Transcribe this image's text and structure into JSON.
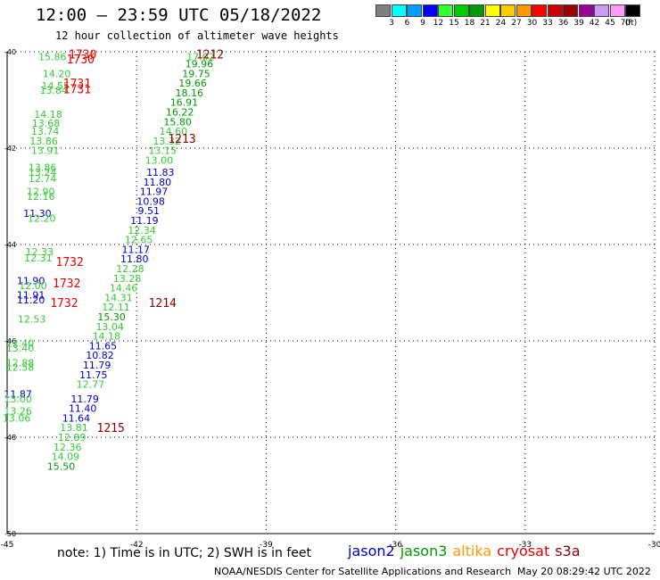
{
  "header": {
    "title": "12:00 – 23:59 UTC 05/18/2022",
    "subtitle": "12 hour collection of altimeter wave heights"
  },
  "color_scale": {
    "unit": "(ft)",
    "bins": [
      {
        "label": "3",
        "color": "#7f7f7f"
      },
      {
        "label": "6",
        "color": "#00ffff"
      },
      {
        "label": "9",
        "color": "#00a0ff"
      },
      {
        "label": "12",
        "color": "#0000ff"
      },
      {
        "label": "15",
        "color": "#33ff33"
      },
      {
        "label": "18",
        "color": "#00cc00"
      },
      {
        "label": "21",
        "color": "#009900"
      },
      {
        "label": "24",
        "color": "#ffff00"
      },
      {
        "label": "27",
        "color": "#ffcc00"
      },
      {
        "label": "30",
        "color": "#ff9900"
      },
      {
        "label": "33",
        "color": "#ff0000"
      },
      {
        "label": "36",
        "color": "#cc0000"
      },
      {
        "label": "39",
        "color": "#990000"
      },
      {
        "label": "42",
        "color": "#990099"
      },
      {
        "label": "45",
        "color": "#cc99ff"
      },
      {
        "label": "70",
        "color": "#ff99ff"
      },
      {
        "label": "",
        "color": "#000000"
      }
    ]
  },
  "map": {
    "lon_range": [
      -45,
      -30
    ],
    "lat_range": [
      -50,
      -40
    ],
    "lon_ticks": [
      -45,
      -42,
      -39,
      -36,
      -33,
      -30
    ],
    "lat_ticks": [
      -40,
      -42,
      -44,
      -46,
      -48,
      -50
    ],
    "lon_labels": [
      "-45",
      "-42",
      "-39",
      "-36",
      "-33",
      "-30"
    ],
    "lat_labels": [
      "-40",
      "-42",
      "-44",
      "-46",
      "-48",
      "-50"
    ],
    "observations": [
      {
        "lon": -43.95,
        "lat": -40.1,
        "value": "15.86",
        "color": "#33cc33"
      },
      {
        "lon": -43.85,
        "lat": -40.45,
        "value": "14.20",
        "color": "#33cc33"
      },
      {
        "lon": -43.88,
        "lat": -40.7,
        "value": "14.55",
        "color": "#33cc33"
      },
      {
        "lon": -43.92,
        "lat": -40.8,
        "value": "13.84",
        "color": "#33cc33"
      },
      {
        "lon": -44.05,
        "lat": -41.3,
        "value": "14.18",
        "color": "#33cc33"
      },
      {
        "lon": -44.1,
        "lat": -41.48,
        "value": "13.68",
        "color": "#33cc33"
      },
      {
        "lon": -44.12,
        "lat": -41.65,
        "value": "13.74",
        "color": "#33cc33"
      },
      {
        "lon": -44.15,
        "lat": -41.85,
        "value": "13.86",
        "color": "#33cc33"
      },
      {
        "lon": -44.12,
        "lat": -42.05,
        "value": "13.91",
        "color": "#33cc33"
      },
      {
        "lon": -44.18,
        "lat": -42.4,
        "value": "13.86",
        "color": "#33cc33"
      },
      {
        "lon": -44.18,
        "lat": -42.5,
        "value": "13.24",
        "color": "#33cc33"
      },
      {
        "lon": -44.18,
        "lat": -42.63,
        "value": "12.74",
        "color": "#33cc33"
      },
      {
        "lon": -44.22,
        "lat": -42.9,
        "value": "12.90",
        "color": "#33cc33"
      },
      {
        "lon": -44.22,
        "lat": -43.0,
        "value": "12.16",
        "color": "#33cc33"
      },
      {
        "lon": -44.3,
        "lat": -43.35,
        "value": "11.30",
        "color": "#0000cc"
      },
      {
        "lon": -44.2,
        "lat": -43.45,
        "value": "12.20",
        "color": "#33cc33"
      },
      {
        "lon": -44.25,
        "lat": -44.15,
        "value": "12.33",
        "color": "#33cc33"
      },
      {
        "lon": -44.28,
        "lat": -44.28,
        "value": "12.31",
        "color": "#33cc33"
      },
      {
        "lon": -44.45,
        "lat": -44.75,
        "value": "11.90",
        "color": "#0000cc"
      },
      {
        "lon": -44.4,
        "lat": -44.85,
        "value": "12.00",
        "color": "#33cc33"
      },
      {
        "lon": -44.45,
        "lat": -45.05,
        "value": "11.91",
        "color": "#0000cc"
      },
      {
        "lon": -44.45,
        "lat": -45.15,
        "value": "11.20",
        "color": "#0000cc"
      },
      {
        "lon": -44.43,
        "lat": -45.55,
        "value": "12.53",
        "color": "#33cc33"
      },
      {
        "lon": -44.7,
        "lat": -46.05,
        "value": "12.40",
        "color": "#33cc33"
      },
      {
        "lon": -44.7,
        "lat": -46.15,
        "value": "13.40",
        "color": "#33cc33"
      },
      {
        "lon": -44.7,
        "lat": -46.45,
        "value": "12.88",
        "color": "#33cc33"
      },
      {
        "lon": -44.7,
        "lat": -46.55,
        "value": "12.58",
        "color": "#33cc33"
      },
      {
        "lon": -44.75,
        "lat": -47.1,
        "value": "11.87",
        "color": "#0000cc"
      },
      {
        "lon": -44.75,
        "lat": -47.2,
        "value": "13.00",
        "color": "#33cc33"
      },
      {
        "lon": -44.75,
        "lat": -47.45,
        "value": "13.26",
        "color": "#33cc33"
      },
      {
        "lon": -44.78,
        "lat": -47.6,
        "value": "13.06",
        "color": "#33cc33"
      },
      {
        "lon": -40.52,
        "lat": -40.1,
        "value": "17.02",
        "color": "#33cc33"
      },
      {
        "lon": -40.55,
        "lat": -40.25,
        "value": "19.96",
        "color": "#009900"
      },
      {
        "lon": -40.62,
        "lat": -40.45,
        "value": "19.75",
        "color": "#009900"
      },
      {
        "lon": -40.7,
        "lat": -40.65,
        "value": "19.66",
        "color": "#009900"
      },
      {
        "lon": -40.78,
        "lat": -40.85,
        "value": "18.16",
        "color": "#009900"
      },
      {
        "lon": -40.9,
        "lat": -41.05,
        "value": "16.91",
        "color": "#009900"
      },
      {
        "lon": -41.0,
        "lat": -41.25,
        "value": "16.22",
        "color": "#009900"
      },
      {
        "lon": -41.05,
        "lat": -41.45,
        "value": "15.80",
        "color": "#009900"
      },
      {
        "lon": -41.15,
        "lat": -41.65,
        "value": "14.60",
        "color": "#33cc33"
      },
      {
        "lon": -41.3,
        "lat": -41.85,
        "value": "13.32",
        "color": "#33cc33"
      },
      {
        "lon": -41.4,
        "lat": -42.05,
        "value": "13.15",
        "color": "#33cc33"
      },
      {
        "lon": -41.48,
        "lat": -42.25,
        "value": "13.00",
        "color": "#33cc33"
      },
      {
        "lon": -41.45,
        "lat": -42.5,
        "value": "11.83",
        "color": "#0000cc"
      },
      {
        "lon": -41.52,
        "lat": -42.7,
        "value": "11.80",
        "color": "#0000cc"
      },
      {
        "lon": -41.6,
        "lat": -42.9,
        "value": "11.97",
        "color": "#0000cc"
      },
      {
        "lon": -41.67,
        "lat": -43.1,
        "value": "10.98",
        "color": "#0000cc"
      },
      {
        "lon": -41.72,
        "lat": -43.3,
        "value": "9.51",
        "color": "#0000cc"
      },
      {
        "lon": -41.82,
        "lat": -43.5,
        "value": "11.19",
        "color": "#0000cc"
      },
      {
        "lon": -41.88,
        "lat": -43.7,
        "value": "12.34",
        "color": "#33cc33"
      },
      {
        "lon": -41.95,
        "lat": -43.9,
        "value": "12.65",
        "color": "#33cc33"
      },
      {
        "lon": -42.02,
        "lat": -44.1,
        "value": "11.17",
        "color": "#0000cc"
      },
      {
        "lon": -42.05,
        "lat": -44.3,
        "value": "11.80",
        "color": "#0000cc"
      },
      {
        "lon": -42.15,
        "lat": -44.5,
        "value": "12.28",
        "color": "#33cc33"
      },
      {
        "lon": -42.22,
        "lat": -44.7,
        "value": "13.28",
        "color": "#33cc33"
      },
      {
        "lon": -42.3,
        "lat": -44.9,
        "value": "14.46",
        "color": "#33cc33"
      },
      {
        "lon": -42.42,
        "lat": -45.1,
        "value": "14.31",
        "color": "#33cc33"
      },
      {
        "lon": -42.48,
        "lat": -45.3,
        "value": "12.11",
        "color": "#33cc33"
      },
      {
        "lon": -42.58,
        "lat": -45.5,
        "value": "15.30",
        "color": "#009900"
      },
      {
        "lon": -42.62,
        "lat": -45.7,
        "value": "13.04",
        "color": "#33cc33"
      },
      {
        "lon": -42.7,
        "lat": -45.9,
        "value": "14.18",
        "color": "#33cc33"
      },
      {
        "lon": -42.78,
        "lat": -46.1,
        "value": "11.65",
        "color": "#0000cc"
      },
      {
        "lon": -42.85,
        "lat": -46.3,
        "value": "10.82",
        "color": "#0000cc"
      },
      {
        "lon": -42.92,
        "lat": -46.5,
        "value": "11.79",
        "color": "#0000cc"
      },
      {
        "lon": -43.0,
        "lat": -46.7,
        "value": "11.75",
        "color": "#0000cc"
      },
      {
        "lon": -43.07,
        "lat": -46.9,
        "value": "12.77",
        "color": "#33cc33"
      },
      {
        "lon": -43.2,
        "lat": -47.2,
        "value": "11.79",
        "color": "#0000cc"
      },
      {
        "lon": -43.25,
        "lat": -47.4,
        "value": "11.40",
        "color": "#0000cc"
      },
      {
        "lon": -43.4,
        "lat": -47.6,
        "value": "11.64",
        "color": "#0000cc"
      },
      {
        "lon": -43.45,
        "lat": -47.8,
        "value": "13.81",
        "color": "#33cc33"
      },
      {
        "lon": -43.5,
        "lat": -48.0,
        "value": "12.89",
        "color": "#33cc33"
      },
      {
        "lon": -43.6,
        "lat": -48.2,
        "value": "12.36",
        "color": "#33cc33"
      },
      {
        "lon": -43.65,
        "lat": -48.4,
        "value": "14.09",
        "color": "#33cc33"
      },
      {
        "lon": -43.75,
        "lat": -48.6,
        "value": "15.50",
        "color": "#009900"
      }
    ],
    "pass_times": [
      {
        "lon": -43.25,
        "lat": -40.05,
        "value": "1730",
        "color": "#ee0000"
      },
      {
        "lon": -43.3,
        "lat": -40.15,
        "value": "1730",
        "color": "#ee0000"
      },
      {
        "lon": -43.38,
        "lat": -40.65,
        "value": "1731",
        "color": "#ee0000"
      },
      {
        "lon": -43.38,
        "lat": -40.77,
        "value": "1731",
        "color": "#ee0000"
      },
      {
        "lon": -40.3,
        "lat": -40.05,
        "value": "1212",
        "color": "#8b0000"
      },
      {
        "lon": -40.95,
        "lat": -41.8,
        "value": "1213",
        "color": "#8b0000"
      },
      {
        "lon": -43.55,
        "lat": -44.35,
        "value": "1732",
        "color": "#ee0000"
      },
      {
        "lon": -43.62,
        "lat": -44.8,
        "value": "1732",
        "color": "#ee0000"
      },
      {
        "lon": -43.68,
        "lat": -45.2,
        "value": "1732",
        "color": "#ee0000"
      },
      {
        "lon": -41.4,
        "lat": -45.2,
        "value": "1214",
        "color": "#8b0000"
      },
      {
        "lon": -42.6,
        "lat": -47.8,
        "value": "1215",
        "color": "#8b0000"
      }
    ]
  },
  "footer": {
    "note": "note:  1) Time is in UTC; 2) SWH is in feet",
    "legend": [
      {
        "label": "jason2",
        "color": "#0000cc"
      },
      {
        "label": "jason3",
        "color": "#009900"
      },
      {
        "label": "altika",
        "color": "#ff9900"
      },
      {
        "label": "cryosat",
        "color": "#ee0000"
      },
      {
        "label": "s3a",
        "color": "#8b0000"
      }
    ],
    "credit": "NOAA/NESDIS Center for Satellite Applications and Research",
    "timestamp": "May 20 08:29:42 UTC 2022"
  }
}
